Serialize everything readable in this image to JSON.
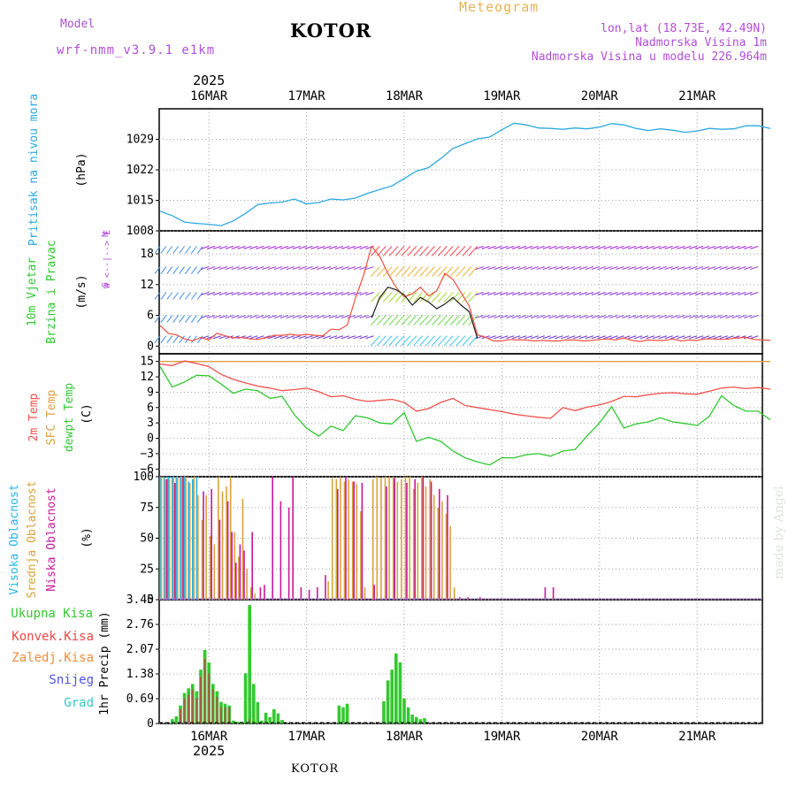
{
  "header": {
    "model_label": "Model",
    "model_name": "wrf-nmm_v3.9.1 e1km",
    "product": "Meteogram",
    "station": "KOTOR",
    "coords": "lon,lat (18.73E, 42.49N)",
    "elevation": "Nadmorska Visina 1m",
    "model_elevation": "Nadmorska Visina u modelu 226.964m"
  },
  "footer": {
    "station": "KOTOR",
    "credit": "made by Angel"
  },
  "colors": {
    "pressure": "#2ca9e1",
    "temp2m": "#f0504a",
    "sfc": "#e0a040",
    "dewpt": "#30c830",
    "wind_label": "#30c830",
    "compass": "#b04fd8",
    "high": "#26b3ea",
    "mid": "#d9a23a",
    "low": "#c8189a",
    "total_precip": "#34c82f",
    "conv": "#f04646",
    "frozen": "#f08c3c",
    "snow": "#5050f0",
    "hail": "#30c8c8"
  },
  "chart_data": [
    {
      "type": "line",
      "title": "",
      "ylabel": "Pritisak na nivou mora",
      "unit": "(hPa)",
      "ylim": [
        1008,
        1036
      ],
      "yticks": [
        1008,
        1015,
        1022,
        1029
      ],
      "x_axis": {
        "top_year": "2025",
        "bottom_year": "2025",
        "day_labels": [
          "16MAR",
          "17MAR",
          "18MAR",
          "19MAR",
          "20MAR",
          "21MAR"
        ]
      },
      "series": [
        {
          "name": "pressure",
          "x_hours": [
            0,
            3,
            6,
            9,
            12,
            15,
            18,
            21,
            24,
            27,
            30,
            33,
            36,
            39,
            42,
            45,
            48,
            51,
            54,
            57,
            60,
            63,
            66,
            69,
            72,
            75,
            78,
            81,
            84,
            87,
            90,
            93,
            96,
            99,
            102,
            105,
            108,
            111,
            114,
            117,
            120,
            123,
            126,
            129,
            132,
            135,
            138,
            141,
            144,
            147,
            150
          ],
          "values": [
            1012.5,
            1011.5,
            1010,
            1009.7,
            1009.5,
            1009.2,
            1010.3,
            1012,
            1014,
            1014.4,
            1014.6,
            1015.3,
            1014.2,
            1014.5,
            1015.3,
            1015.1,
            1015.5,
            1016.6,
            1017.5,
            1018.3,
            1020,
            1021.7,
            1022.5,
            1024.6,
            1026.9,
            1028,
            1029.1,
            1029.5,
            1031.2,
            1032.7,
            1032.3,
            1031.6,
            1031.5,
            1031.3,
            1031.6,
            1031.4,
            1031.8,
            1032.6,
            1032.3,
            1031.5,
            1031,
            1031.4,
            1031.1,
            1030.6,
            1030.9,
            1031.5,
            1031.3,
            1031.4,
            1032.1,
            1032.1,
            1031.5
          ]
        }
      ]
    },
    {
      "type": "line",
      "title": "",
      "ylabel_lines": [
        "10m Vjetar",
        "Brzina i Pravac"
      ],
      "unit": "(m/s)",
      "compass": [
        "N",
        "W  <--|-->  E",
        "S"
      ],
      "ylim": [
        -1.5,
        22.5
      ],
      "yticks": [
        0,
        6,
        12,
        18
      ],
      "barb_levels": [
        2,
        6,
        10.5,
        15.5,
        19.5
      ],
      "series": [
        {
          "name": "speed",
          "x_hours": [
            0,
            2,
            4,
            6,
            8,
            10,
            12,
            14,
            16,
            18,
            20,
            22,
            24,
            26,
            28,
            30,
            32,
            34,
            36,
            38,
            40,
            42,
            44,
            46,
            48,
            50,
            52,
            54,
            56,
            58,
            60,
            62,
            64,
            66,
            68,
            70,
            72,
            74,
            76,
            78,
            80,
            82,
            84,
            86,
            88,
            90,
            92,
            94,
            96,
            98,
            100,
            102,
            104,
            106,
            108,
            110,
            112,
            114,
            116,
            118,
            120,
            122,
            124,
            126,
            128,
            130,
            132,
            134,
            136,
            138,
            140,
            142,
            144,
            146,
            148,
            150
          ],
          "values": [
            4,
            2.5,
            2.2,
            1.4,
            1,
            1.7,
            1.2,
            2.5,
            2,
            1.6,
            1.7,
            1.4,
            1.3,
            1.6,
            2.1,
            2.1,
            2.3,
            2.1,
            2.3,
            2.1,
            2,
            3.3,
            3.2,
            4.1,
            9.3,
            13.8,
            19.5,
            17.5,
            14.2,
            11.5,
            9.6,
            10.2,
            11.5,
            9.8,
            10.8,
            14.2,
            13,
            10.4,
            7.8,
            2.2,
            1.7,
            1,
            1,
            1.3,
            1.2,
            1.2,
            1,
            1.1,
            1,
            1,
            1.2,
            1.2,
            1,
            1.1,
            1.3,
            1.4,
            1.2,
            1.6,
            1.1,
            0.9,
            1.2,
            1.1,
            1.1,
            1.4,
            1,
            1.2,
            1.1,
            1.4,
            1.4,
            1.3,
            1.4,
            1.6,
            1.7,
            1.3,
            1.2,
            1.1
          ]
        },
        {
          "name": "gust",
          "x_hours": [
            52,
            54,
            56,
            58,
            60,
            62,
            64,
            66,
            68,
            70,
            72,
            74,
            76,
            78
          ],
          "values": [
            5.5,
            9.5,
            11.5,
            11,
            10,
            8,
            9.5,
            8.6,
            7.3,
            8.2,
            9.5,
            8,
            6.7,
            1.5
          ]
        }
      ]
    },
    {
      "type": "line",
      "title": "",
      "ylabels": [
        "2m Temp",
        "SFC Temp",
        "dewpt Temp"
      ],
      "unit": "(C)",
      "ylim": [
        -7.5,
        16.5
      ],
      "yticks": [
        -6,
        -3,
        0,
        3,
        6,
        9,
        12,
        15
      ],
      "series": [
        {
          "name": "SFC Temp",
          "x_hours": [
            0,
            150
          ],
          "values": [
            15,
            15
          ]
        },
        {
          "name": "2m Temp",
          "x_hours": [
            0,
            3,
            6,
            9,
            12,
            15,
            18,
            21,
            24,
            27,
            30,
            33,
            36,
            39,
            42,
            45,
            48,
            51,
            54,
            57,
            60,
            63,
            66,
            69,
            72,
            75,
            78,
            81,
            84,
            87,
            90,
            93,
            96,
            99,
            102,
            105,
            108,
            111,
            114,
            117,
            120,
            123,
            126,
            129,
            132,
            135,
            138,
            141,
            144,
            147,
            150
          ],
          "values": [
            14.5,
            14.2,
            15.1,
            14.6,
            14,
            12.5,
            11.5,
            10.8,
            10.2,
            9.8,
            9.3,
            9.5,
            9.8,
            9.1,
            8.1,
            8.3,
            7.6,
            7.2,
            7.4,
            7.6,
            7,
            5.3,
            5.8,
            7,
            7.8,
            6.4,
            6,
            5.6,
            5.2,
            4.7,
            4.4,
            4.1,
            3.9,
            6,
            5.4,
            6.1,
            6.5,
            7.2,
            8.2,
            8.1,
            8.5,
            8.8,
            8.9,
            8.7,
            8.6,
            9.2,
            9.8,
            10,
            9.7,
            9.9,
            9.6
          ]
        },
        {
          "name": "dewpt Temp",
          "x_hours": [
            0,
            3,
            6,
            9,
            12,
            15,
            18,
            21,
            24,
            27,
            30,
            33,
            36,
            39,
            42,
            45,
            48,
            51,
            54,
            57,
            60,
            63,
            66,
            69,
            72,
            75,
            78,
            81,
            84,
            87,
            90,
            93,
            96,
            99,
            102,
            105,
            108,
            111,
            114,
            117,
            120,
            123,
            126,
            129,
            132,
            135,
            138,
            141,
            144,
            147,
            150
          ],
          "values": [
            14,
            10,
            11,
            12.3,
            12.2,
            10.6,
            8.8,
            9.6,
            9.3,
            7.8,
            8.2,
            4.6,
            2,
            0.4,
            2.4,
            1.5,
            4.4,
            4,
            3,
            2.8,
            5,
            -0.6,
            0.2,
            -0.6,
            -2.5,
            -3.8,
            -4.6,
            -5.2,
            -3.8,
            -3.8,
            -3.2,
            -3,
            -3.5,
            -2.5,
            -2.2,
            0.5,
            3,
            6.2,
            2,
            2.8,
            3.2,
            4,
            3.2,
            2.9,
            2.5,
            4.3,
            8.3,
            6.4,
            5.3,
            5.3,
            3.6
          ]
        }
      ]
    },
    {
      "type": "bar",
      "title": "",
      "ylabels": [
        "Visoka Oblacnost",
        "Srednja Oblacnost",
        "Niska Oblacnost"
      ],
      "unit": "(%)",
      "ylim": [
        0,
        100
      ],
      "yticks": [
        0,
        25,
        50,
        75,
        100
      ],
      "series": [
        {
          "name": "Visoka Oblacnost",
          "x_hours": [
            0,
            1,
            2,
            3,
            4,
            5,
            6,
            7,
            8,
            9
          ],
          "values": [
            100,
            100,
            100,
            100,
            100,
            100,
            100,
            96,
            98,
            100
          ]
        },
        {
          "name": "Srednja Oblacnost",
          "x_hours": [
            0,
            1,
            2,
            3,
            4,
            5,
            6,
            7,
            8,
            9,
            10,
            11,
            12,
            13,
            14,
            15,
            16,
            17,
            18,
            19,
            20,
            21,
            22,
            23,
            41,
            42,
            43,
            44,
            45,
            46,
            47,
            48,
            49,
            50,
            52,
            53,
            54,
            55,
            56,
            57,
            58,
            59,
            60,
            61,
            62,
            63,
            64,
            65,
            66,
            67,
            68,
            69,
            70,
            71,
            72
          ],
          "values": [
            100,
            98,
            98,
            100,
            100,
            100,
            100,
            95,
            100,
            85,
            65,
            85,
            52,
            45,
            100,
            88,
            92,
            100,
            55,
            35,
            82,
            25,
            10,
            5,
            15,
            99,
            98,
            100,
            96,
            98,
            96,
            94,
            72,
            10,
            98,
            100,
            99,
            100,
            100,
            100,
            96,
            98,
            100,
            100,
            90,
            95,
            100,
            92,
            98,
            85,
            75,
            80,
            70,
            60,
            10
          ]
        },
        {
          "name": "Niska Oblacnost",
          "x_hours": [
            1,
            3,
            5,
            10,
            12,
            14,
            16,
            17,
            18,
            19,
            20,
            22,
            24,
            25,
            27,
            29,
            31,
            32,
            34,
            36,
            38,
            40,
            43,
            45,
            47,
            49,
            52,
            55,
            57,
            60,
            62,
            64,
            66,
            68,
            70,
            73,
            75,
            78,
            94,
            96
          ],
          "values": [
            98,
            95,
            100,
            88,
            90,
            65,
            80,
            55,
            30,
            45,
            40,
            55,
            10,
            12,
            100,
            80,
            75,
            100,
            10,
            8,
            10,
            20,
            90,
            100,
            96,
            95,
            12,
            92,
            99,
            95,
            98,
            100,
            96,
            90,
            85,
            2,
            2,
            2,
            10,
            10
          ]
        }
      ]
    },
    {
      "type": "bar",
      "title": "",
      "ylabel": "1hr Precip (mm)",
      "ylim": [
        0,
        3.45
      ],
      "yticks": [
        0,
        0.69,
        1.38,
        2.07,
        2.76,
        3.45
      ],
      "legend": [
        "Ukupna Kisa",
        "Konvek.Kisa",
        "Zaledj.Kisa",
        "Snijeg",
        "Grad"
      ],
      "series": [
        {
          "name": "Ukupna Kisa",
          "x_hours": [
            3,
            4,
            5,
            6,
            7,
            8,
            9,
            10,
            11,
            12,
            13,
            14,
            15,
            16,
            17,
            18,
            19,
            20,
            21,
            22,
            23,
            24,
            25,
            26,
            27,
            28,
            29,
            30,
            44,
            45,
            46,
            55,
            56,
            57,
            58,
            59,
            60,
            61,
            62,
            63,
            64,
            65
          ],
          "values": [
            0.12,
            0.2,
            0.5,
            0.85,
            0.98,
            1.1,
            0.9,
            1.5,
            2.05,
            1.7,
            1.1,
            0.9,
            0.6,
            0.55,
            0.5,
            0.08,
            0.05,
            0.05,
            1.4,
            3.3,
            1.1,
            0.6,
            0.08,
            0.3,
            0.18,
            0.4,
            0.28,
            0.1,
            0.5,
            0.45,
            0.55,
            0.62,
            1.2,
            1.5,
            1.95,
            1.7,
            0.7,
            0.45,
            0.25,
            0.18,
            0.12,
            0.15
          ]
        },
        {
          "name": "Konvek.Kisa",
          "x_hours": [
            5,
            6,
            7,
            8,
            9,
            10,
            11,
            12,
            13,
            14,
            15,
            16,
            17,
            22
          ],
          "values": [
            0.4,
            0.7,
            0.8,
            0.95,
            0.7,
            1.3,
            1.8,
            1.4,
            0.95,
            0.75,
            0.45,
            0.45,
            0.45,
            0.12
          ]
        }
      ]
    }
  ]
}
